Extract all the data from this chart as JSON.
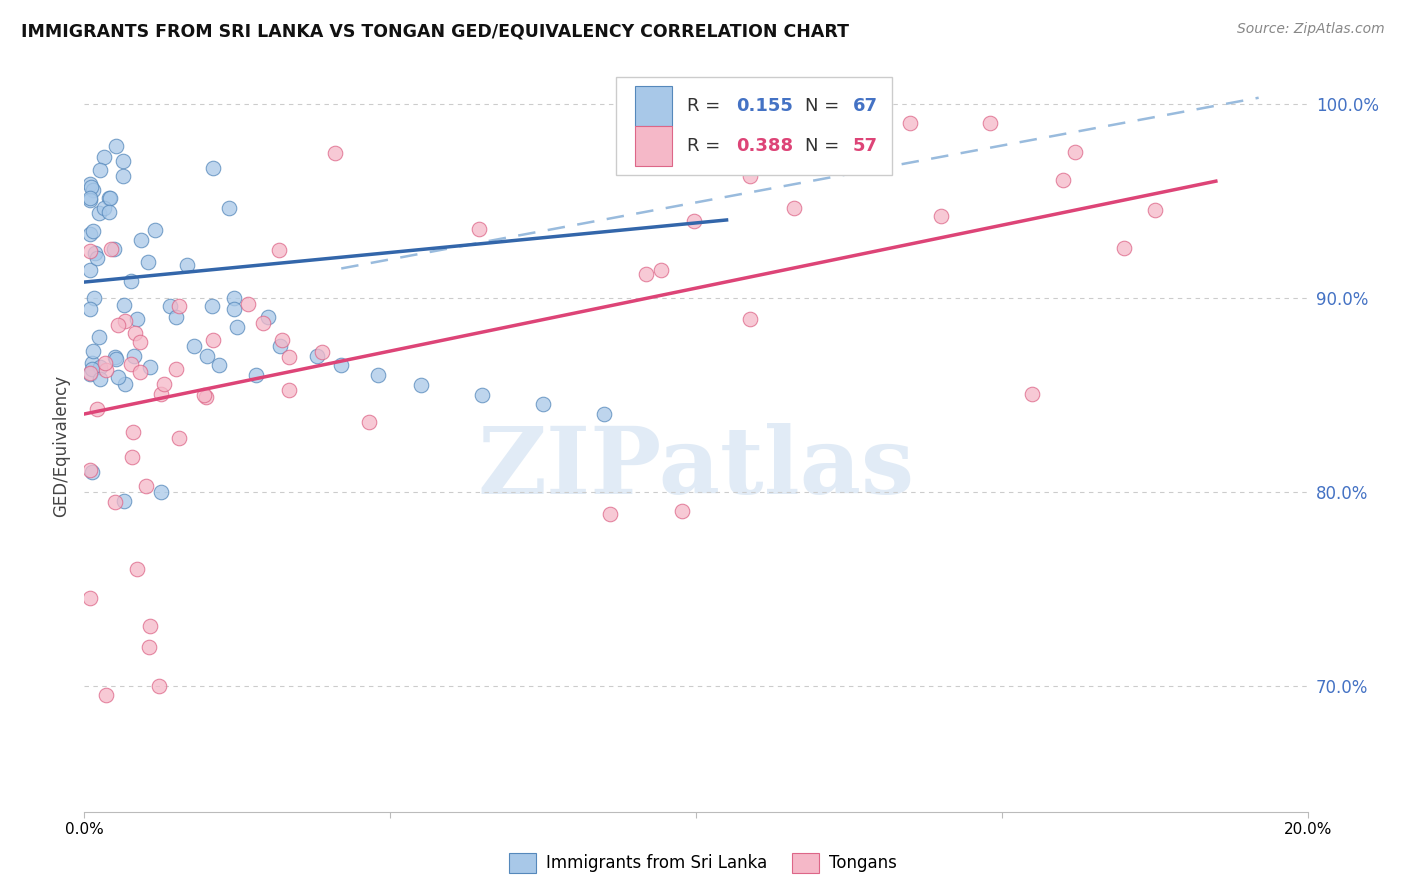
{
  "title": "IMMIGRANTS FROM SRI LANKA VS TONGAN GED/EQUIVALENCY CORRELATION CHART",
  "source": "Source: ZipAtlas.com",
  "ylabel": "GED/Equivalency",
  "legend_label1": "Immigrants from Sri Lanka",
  "legend_label2": "Tongans",
  "color_blue_fill": "#a8c8e8",
  "color_blue_edge": "#5588bb",
  "color_blue_line": "#3366aa",
  "color_pink_fill": "#f5b8c8",
  "color_pink_edge": "#dd6688",
  "color_pink_line": "#dd4477",
  "color_dashed": "#99bbdd",
  "color_grid": "#cccccc",
  "color_ytick": "#4472c4",
  "x_min": 0.0,
  "x_max": 0.2,
  "y_min": 0.635,
  "y_max": 1.012,
  "scatter_size": 110,
  "watermark": "ZIPatlas"
}
